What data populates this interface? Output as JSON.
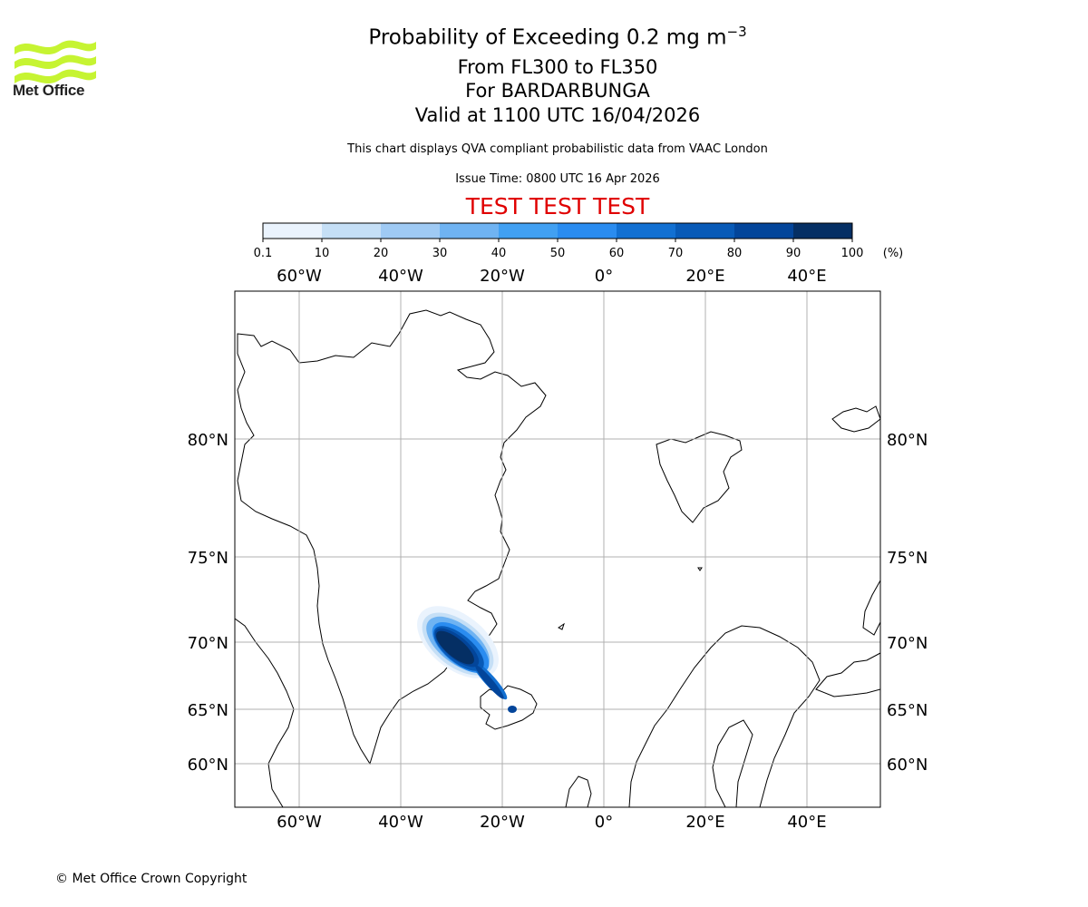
{
  "header": {
    "logo_text": "Met Office",
    "title_prefix": "Probability of Exceeding 0.2 mg m",
    "title_superscript": "−3",
    "levels": "From FL300 to FL350",
    "volcano": "For BARDARBUNGA",
    "valid_time": "Valid at 1100 UTC 16/04/2026",
    "disclaimer": "This chart displays QVA compliant probabilistic data from VAAC London",
    "issue_time": "Issue Time: 0800 UTC 16 Apr 2026",
    "test_banner": "TEST TEST TEST"
  },
  "colorbar": {
    "ticks": [
      "0.1",
      "10",
      "20",
      "30",
      "40",
      "50",
      "60",
      "70",
      "80",
      "90",
      "100"
    ],
    "unit": "(%)",
    "colors": [
      "#eaf3fd",
      "#c5dff6",
      "#9fcaf4",
      "#6fb3f2",
      "#41a0f2",
      "#2a8cf0",
      "#1270d2",
      "#085ab7",
      "#03459a",
      "#052f64"
    ]
  },
  "map": {
    "lon_labels": [
      "60°W",
      "40°W",
      "20°W",
      "0°",
      "20°E",
      "40°E"
    ],
    "lat_labels": [
      "80°N",
      "75°N",
      "70°N",
      "65°N",
      "60°N"
    ],
    "lon_values": [
      -60,
      -40,
      -20,
      0,
      20,
      40
    ],
    "lat_values": [
      80,
      75,
      70,
      65,
      60
    ],
    "plume_peak_probability_percent": 100,
    "source": "BARDARBUNGA"
  },
  "footer": {
    "copyright": "© Met Office Crown Copyright"
  }
}
